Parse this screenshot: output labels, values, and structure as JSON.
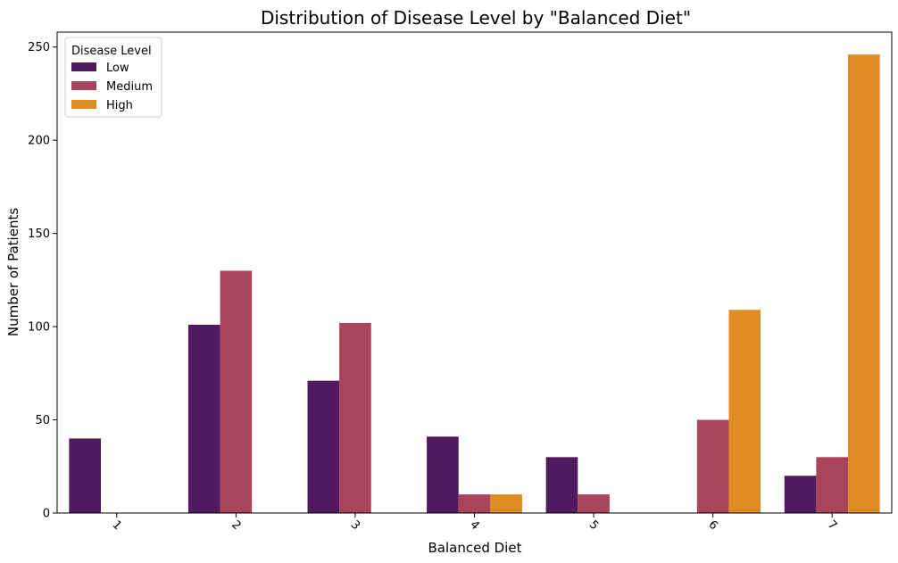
{
  "chart_data": {
    "type": "bar",
    "title": "Distribution of Disease Level by \"Balanced Diet\"",
    "xlabel": "Balanced Diet",
    "ylabel": "Number of Patients",
    "categories": [
      "1",
      "2",
      "3",
      "4",
      "5",
      "6",
      "7"
    ],
    "series": [
      {
        "name": "Low",
        "color": "#501a5e",
        "values": [
          40,
          101,
          71,
          41,
          30,
          0,
          20
        ]
      },
      {
        "name": "Medium",
        "color": "#a8455a",
        "values": [
          0,
          130,
          102,
          10,
          10,
          50,
          30
        ]
      },
      {
        "name": "High",
        "color": "#e08c24",
        "values": [
          0,
          0,
          0,
          10,
          0,
          109,
          246
        ]
      }
    ],
    "ylim": [
      0,
      258
    ],
    "yticks": [
      0,
      50,
      100,
      150,
      200,
      250
    ],
    "grid": false,
    "legend": {
      "title": "Disease Level",
      "position": "top-left"
    }
  }
}
